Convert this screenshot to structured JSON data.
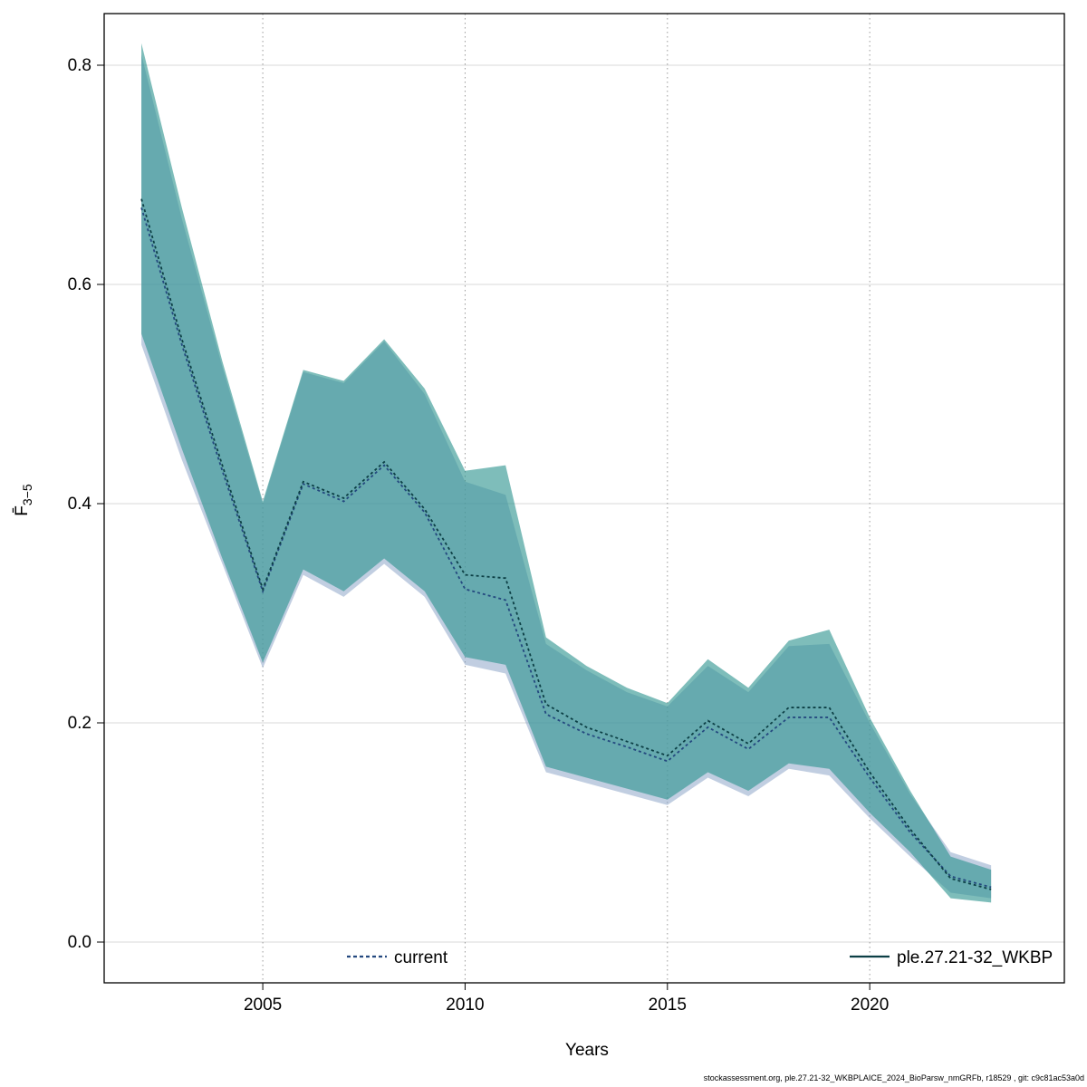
{
  "page": {
    "background": "#ffffff"
  },
  "footer": {
    "text": "stockassessment.org, ple.27.21-32_WKBPLAICE_2024_BioParsw_nmGRFb, r18529 , git: c9c81ac53a0d"
  },
  "chart_data": {
    "type": "area",
    "title": "",
    "xlabel": "Years",
    "ylabel_main": "F̄",
    "ylabel_sub": "3−5",
    "xlim": [
      2001.08,
      2024.81
    ],
    "ylim": [
      -0.0372,
      0.8471
    ],
    "grid": true,
    "legend_position": "bottom-inside",
    "x_ticks": [
      2005,
      2010,
      2015,
      2020
    ],
    "x_tick_labels": [
      "2005",
      "2010",
      "2015",
      "2020"
    ],
    "y_ticks": [
      0.0,
      0.2,
      0.4,
      0.6,
      0.8
    ],
    "y_tick_labels": [
      "0.0",
      "0.2",
      "0.4",
      "0.6",
      "0.8"
    ],
    "x": [
      2002,
      2003,
      2004,
      2005,
      2006,
      2007,
      2008,
      2009,
      2010,
      2011,
      2012,
      2013,
      2014,
      2015,
      2016,
      2017,
      2018,
      2019,
      2020,
      2021,
      2022,
      2023
    ],
    "series": [
      {
        "name": "current",
        "label": "current",
        "line_color": "#24497f",
        "band_color": "#8ea6c9",
        "band_opacity": 0.55,
        "mid": [
          0.67,
          0.545,
          0.43,
          0.32,
          0.418,
          0.402,
          0.435,
          0.392,
          0.322,
          0.312,
          0.208,
          0.19,
          0.178,
          0.165,
          0.196,
          0.176,
          0.205,
          0.205,
          0.15,
          0.1,
          0.06,
          0.05
        ],
        "low": [
          0.545,
          0.44,
          0.345,
          0.25,
          0.335,
          0.315,
          0.345,
          0.315,
          0.253,
          0.245,
          0.155,
          0.145,
          0.135,
          0.125,
          0.15,
          0.133,
          0.158,
          0.152,
          0.113,
          0.078,
          0.045,
          0.04
        ],
        "high": [
          0.81,
          0.66,
          0.525,
          0.4,
          0.52,
          0.51,
          0.548,
          0.5,
          0.42,
          0.408,
          0.272,
          0.248,
          0.228,
          0.215,
          0.252,
          0.228,
          0.27,
          0.272,
          0.2,
          0.135,
          0.082,
          0.07
        ]
      },
      {
        "name": "ple.27.21-32_WKBP",
        "label": "ple.27.21-32_WKBP",
        "line_color": "#0c3f45",
        "band_color": "#2f9490",
        "band_opacity": 0.62,
        "mid": [
          0.678,
          0.55,
          0.435,
          0.322,
          0.42,
          0.405,
          0.438,
          0.395,
          0.335,
          0.332,
          0.217,
          0.196,
          0.183,
          0.17,
          0.202,
          0.181,
          0.214,
          0.214,
          0.155,
          0.103,
          0.058,
          0.048
        ],
        "low": [
          0.555,
          0.45,
          0.35,
          0.255,
          0.34,
          0.32,
          0.35,
          0.32,
          0.26,
          0.253,
          0.16,
          0.15,
          0.14,
          0.13,
          0.155,
          0.138,
          0.163,
          0.158,
          0.118,
          0.082,
          0.04,
          0.036
        ],
        "high": [
          0.82,
          0.67,
          0.53,
          0.402,
          0.522,
          0.512,
          0.55,
          0.505,
          0.43,
          0.435,
          0.278,
          0.252,
          0.232,
          0.218,
          0.258,
          0.232,
          0.275,
          0.285,
          0.205,
          0.138,
          0.078,
          0.066
        ]
      }
    ]
  }
}
